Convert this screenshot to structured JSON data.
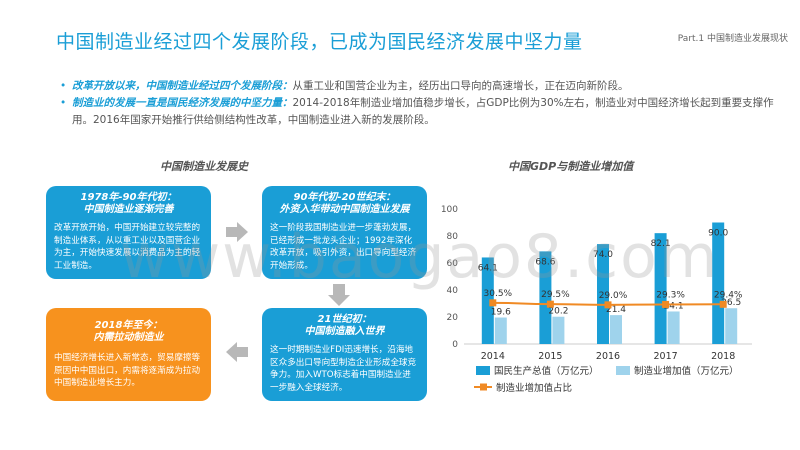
{
  "header": {
    "title": "中国制造业经过四个发展阶段，已成为国民经济发展中坚力量",
    "part": "Part.1 中国制造业发展现状"
  },
  "bullets": [
    {
      "lead": "改革开放以来，中国制造业经过四个发展阶段：",
      "text": "从重工业和国营企业为主，经历出口导向的高速增长，正在迈向新阶段。"
    },
    {
      "lead": "制造业的发展一直是国民经济发展的中坚力量：",
      "text": "2014-2018年制造业增加值稳步增长，占GDP比例为30%左右，制造业对中国经济增长起到重要支撑作用。2016年国家开始推行供给侧结构性改革，中国制造业进入新的发展阶段。"
    }
  ],
  "history": {
    "title": "中国制造业发展史",
    "cards": [
      {
        "head1": "1978年-90年代初：",
        "head2": "中国制造业逐渐完善",
        "body": "改革开放开始，中国开始建立较完整的制造业体系，从以重工业以及国营企业为主，开始快速发展以消费品为主的轻工业制造。"
      },
      {
        "head1": "90年代初-20世纪末：",
        "head2": "外资入华带动中国制造业发展",
        "body": "这一阶段我国制造业进一步蓬勃发展，已经形成一批龙头企业；1992年深化改革开放，吸引外资，出口导向型经济开始形成。"
      },
      {
        "head1": "21世纪初：",
        "head2": "中国制造融入世界",
        "body": "这一时期制造业FDI迅速增长，沿海地区众多出口导向型制造企业形成全球竞争力。加入WTO标志着中国制造业进一步融入全球经济。"
      },
      {
        "head1": "2018年至今：",
        "head2": "内需拉动制造业",
        "body": "中国经济增长进入新常态，贸易摩擦等原因中中国出口，内需将逐渐成为拉动中国制造业增长主力。"
      }
    ]
  },
  "watermark": "www.baogao8.com",
  "chart_data": {
    "type": "bar",
    "title": "中国GDP与制造业增加值",
    "categories": [
      "2014",
      "2015",
      "2016",
      "2017",
      "2018"
    ],
    "ylim": [
      0,
      100
    ],
    "yticks": [
      "0",
      "20",
      "40",
      "60",
      "80",
      "100"
    ],
    "series": [
      {
        "name": "国民生产总值（万亿元）",
        "values": [
          64.1,
          68.6,
          74.0,
          82.1,
          90.0
        ],
        "labels": [
          "64.1",
          "68.6",
          "74.0",
          "82.1",
          "90.0"
        ],
        "color": "#1a9ed6",
        "kind": "bar"
      },
      {
        "name": "制造业增加值（万亿元）",
        "values": [
          19.6,
          20.2,
          21.4,
          24.1,
          26.5
        ],
        "labels": [
          "19.6",
          "20.2",
          "21.4",
          "24.1",
          "26.5"
        ],
        "color": "#9fd3ec",
        "kind": "bar"
      },
      {
        "name": "制造业增加值占比",
        "values": [
          30.5,
          29.5,
          29.0,
          29.3,
          29.4
        ],
        "labels": [
          "30.5%",
          "29.5%",
          "29.0%",
          "29.3%",
          "29.4%"
        ],
        "color": "#f08a24",
        "kind": "line"
      }
    ],
    "legend_position": "bottom"
  },
  "colors": {
    "accent": "#1a9ed6",
    "orange": "#f7921e",
    "light_blue": "#9fd3ec"
  }
}
